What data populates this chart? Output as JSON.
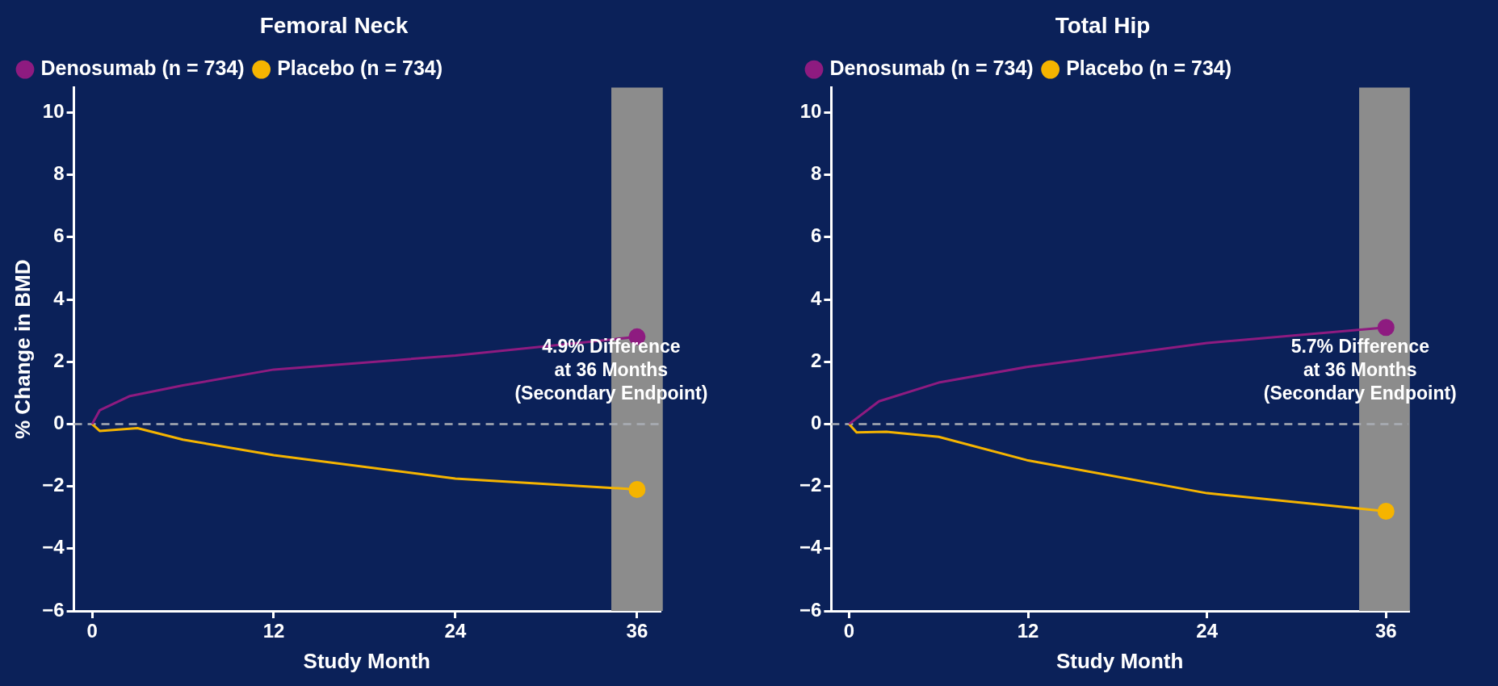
{
  "chart_data": [
    {
      "type": "line",
      "title": "Femoral Neck",
      "xlabel": "Study Month",
      "ylabel": "% Change in BMD",
      "series": [
        {
          "name": "Denosumab (n = 734)",
          "color": "#8e1b80",
          "x": [
            0,
            0.5,
            2.5,
            6,
            12,
            24,
            36
          ],
          "values": [
            0,
            0.44,
            0.9,
            1.24,
            1.75,
            2.2,
            2.8
          ]
        },
        {
          "name": "Placebo (n = 734)",
          "color": "#f5b400",
          "x": [
            0,
            0.5,
            3,
            6,
            12,
            24,
            36
          ],
          "values": [
            0,
            -0.22,
            -0.13,
            -0.5,
            -1.0,
            -1.75,
            -2.1
          ]
        }
      ],
      "xlim": [
        -1.2,
        37.5
      ],
      "xticks": [
        0,
        12,
        24,
        36
      ],
      "ylim": [
        -6,
        10.8
      ],
      "yticks": [
        {
          "value": -6,
          "label": "−6"
        },
        {
          "value": -4,
          "label": "−4"
        },
        {
          "value": -2,
          "label": "−2"
        },
        0,
        2,
        4,
        6,
        8,
        10
      ],
      "ref_lines": [
        {
          "axis": "y",
          "value": 0,
          "color": "#a9adb5",
          "line_style": "dashed"
        }
      ],
      "bands": [
        {
          "axis": "x",
          "from": 34.3,
          "to": 37.7,
          "color": "#8c8c8c"
        }
      ],
      "annotations": [
        "4.9% Difference\nat 36 Months\n(Secondary Endpoint)"
      ],
      "legend": "top left",
      "line_style": "solid",
      "grid": false
    },
    {
      "type": "line",
      "title": "Total Hip",
      "xlabel": "Study Month",
      "series": [
        {
          "name": "Denosumab (n = 734)",
          "color": "#8e1b80",
          "x": [
            0,
            2,
            6,
            12,
            24,
            36
          ],
          "values": [
            0,
            0.73,
            1.33,
            1.84,
            2.6,
            3.1
          ]
        },
        {
          "name": "Placebo (n = 734)",
          "color": "#f5b400",
          "x": [
            0,
            0.5,
            2.5,
            6,
            12,
            24,
            36
          ],
          "values": [
            0,
            -0.27,
            -0.25,
            -0.41,
            -1.17,
            -2.22,
            -2.8
          ]
        }
      ],
      "xlim": [
        -1.2,
        37.5
      ],
      "xticks": [
        0,
        12,
        24,
        36
      ],
      "ylim": [
        -6,
        10.8
      ],
      "yticks": [
        {
          "value": -6,
          "label": "−6"
        },
        {
          "value": -4,
          "label": "−4"
        },
        {
          "value": -2,
          "label": "−2"
        },
        0,
        2,
        4,
        6,
        8,
        10
      ],
      "ref_lines": [
        {
          "axis": "y",
          "value": 0,
          "color": "#a9adb5",
          "line_style": "dashed"
        }
      ],
      "bands": [
        {
          "axis": "x",
          "from": 34.2,
          "to": 37.6,
          "color": "#8c8c8c"
        }
      ],
      "annotations": [
        "5.7% Difference\nat 36 Months\n(Secondary Endpoint)"
      ],
      "legend": "top left",
      "line_style": "solid",
      "grid": false
    }
  ]
}
